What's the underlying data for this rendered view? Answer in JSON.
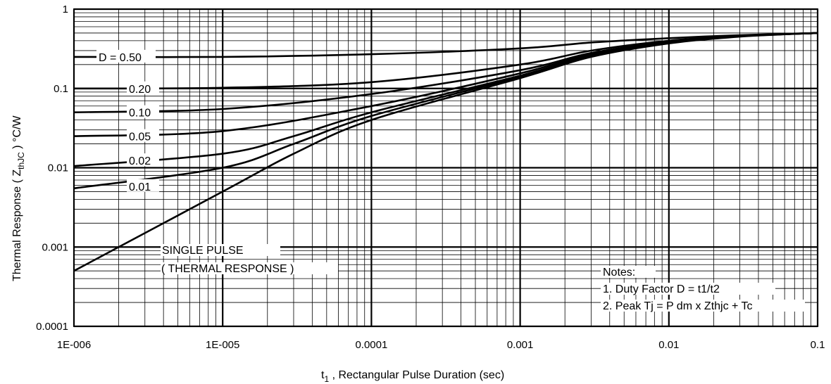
{
  "chart_data": {
    "type": "line",
    "xscale": "log",
    "yscale": "log",
    "xlim": [
      1e-06,
      0.1
    ],
    "ylim": [
      0.0001,
      1
    ],
    "grid": true,
    "x_tick_labels": [
      "1E-006",
      "1E-005",
      "0.0001",
      "0.001",
      "0.01",
      "0.1"
    ],
    "x_tick_values": [
      1e-06,
      1e-05,
      0.0001,
      0.001,
      0.01,
      0.1
    ],
    "y_tick_labels": [
      "0.0001",
      "0.001",
      "0.01",
      "0.1",
      "1"
    ],
    "y_tick_values": [
      0.0001,
      0.001,
      0.01,
      0.1,
      1
    ],
    "xlabel_main": "t",
    "xlabel_sub": "1",
    "xlabel_rest": " , Rectangular Pulse Duration (sec)",
    "ylabel_main": "Thermal Response ( Z",
    "ylabel_sub": "thJC",
    "ylabel_rest": " ) °C/W",
    "series": [
      {
        "name": "D = 0.50",
        "x": [
          1e-06,
          1e-05,
          0.0001,
          0.001,
          0.003,
          0.01,
          0.03,
          0.1
        ],
        "y": [
          0.25,
          0.25,
          0.27,
          0.32,
          0.38,
          0.43,
          0.47,
          0.5
        ]
      },
      {
        "name": "0.20",
        "x": [
          1e-06,
          1e-05,
          0.0001,
          0.001,
          0.003,
          0.01,
          0.03,
          0.1
        ],
        "y": [
          0.1,
          0.102,
          0.12,
          0.2,
          0.3,
          0.4,
          0.46,
          0.5
        ]
      },
      {
        "name": "0.10",
        "x": [
          1e-06,
          1e-05,
          0.0001,
          0.001,
          0.003,
          0.01,
          0.03,
          0.1
        ],
        "y": [
          0.05,
          0.055,
          0.085,
          0.17,
          0.28,
          0.39,
          0.46,
          0.5
        ]
      },
      {
        "name": "0.05",
        "x": [
          1e-06,
          1e-05,
          0.0001,
          0.001,
          0.003,
          0.01,
          0.03,
          0.1
        ],
        "y": [
          0.025,
          0.029,
          0.06,
          0.155,
          0.27,
          0.385,
          0.455,
          0.5
        ]
      },
      {
        "name": "0.02",
        "x": [
          1e-06,
          1e-05,
          3e-05,
          0.0001,
          0.001,
          0.003,
          0.01,
          0.03,
          0.1
        ],
        "y": [
          0.0105,
          0.015,
          0.025,
          0.05,
          0.145,
          0.26,
          0.38,
          0.455,
          0.5
        ]
      },
      {
        "name": "0.01",
        "x": [
          1e-06,
          1e-05,
          3e-05,
          0.0001,
          0.001,
          0.003,
          0.01,
          0.03,
          0.1
        ],
        "y": [
          0.0055,
          0.01,
          0.02,
          0.045,
          0.14,
          0.255,
          0.375,
          0.455,
          0.5
        ]
      },
      {
        "name": "SINGLE PULSE",
        "x": [
          1e-06,
          1e-05,
          3e-05,
          0.0001,
          0.001,
          0.003,
          0.01,
          0.03,
          0.1
        ],
        "y": [
          0.0005,
          0.005,
          0.015,
          0.04,
          0.135,
          0.25,
          0.37,
          0.45,
          0.5
        ]
      }
    ],
    "curve_labels": [
      "D = 0.50",
      "0.20",
      "0.10",
      "0.05",
      "0.02",
      "0.01"
    ],
    "single_pulse_label": [
      "SINGLE PULSE",
      "( THERMAL RESPONSE )"
    ],
    "notes": [
      "Notes:",
      "1. Duty Factor D = t1/t2",
      "2. Peak Tj = P dm x Zthjc + Tc"
    ]
  }
}
